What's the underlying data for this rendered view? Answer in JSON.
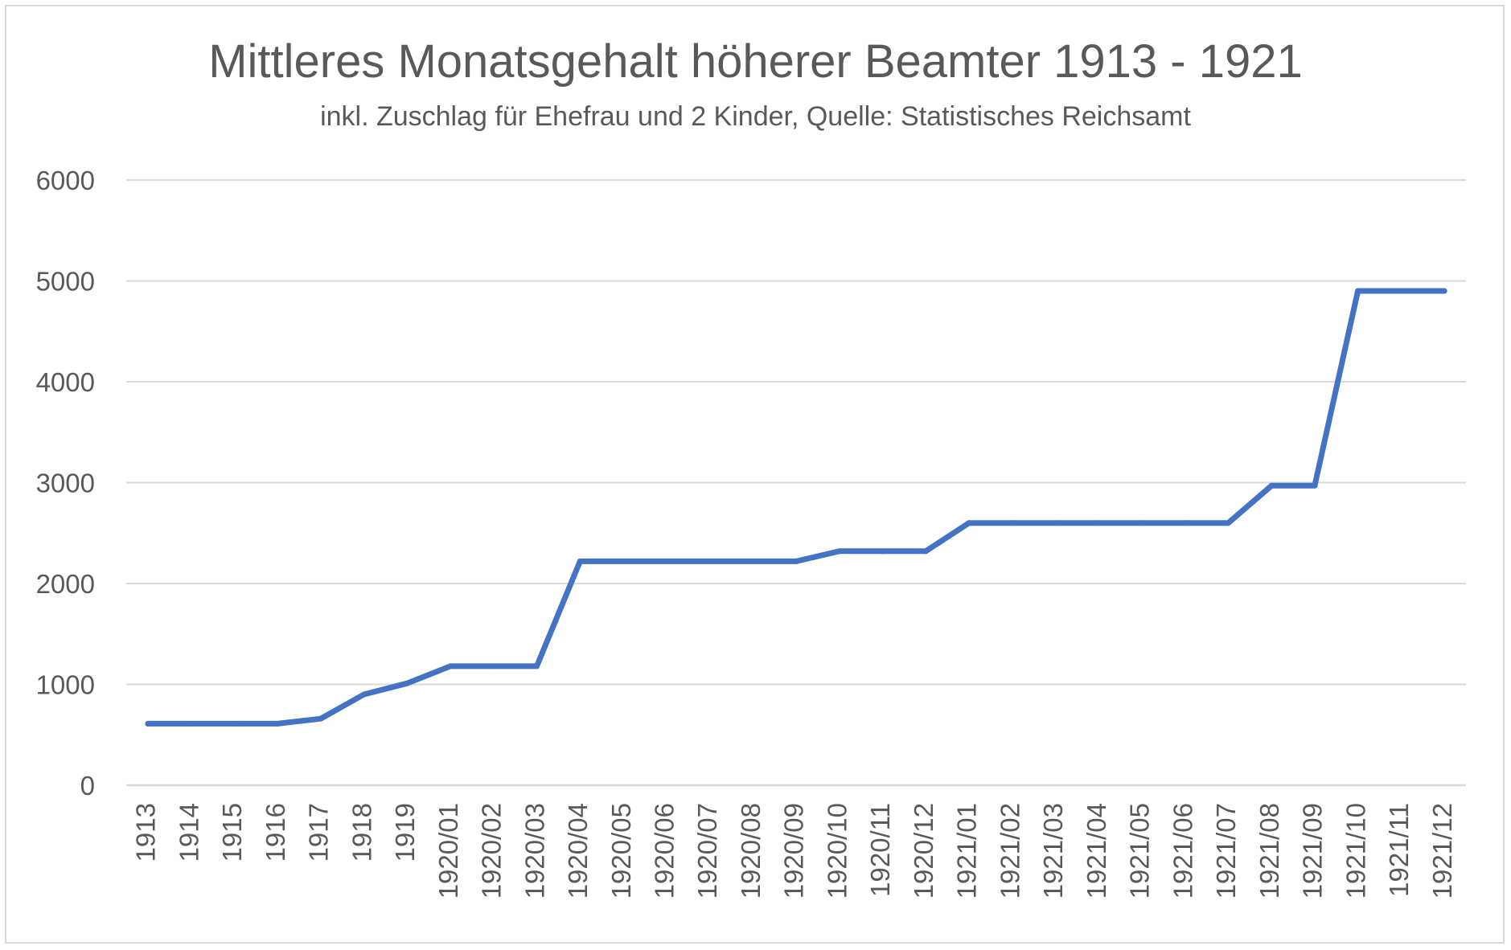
{
  "chart_data": {
    "type": "line",
    "title": "Mittleres Monatsgehalt höherer Beamter 1913 - 1921",
    "subtitle": "inkl. Zuschlag für Ehefrau und 2 Kinder, Quelle: Statistisches Reichsamt",
    "xlabel": "",
    "ylabel": "",
    "ylim": [
      0,
      6000
    ],
    "yticks": [
      "0",
      "1000",
      "2000",
      "3000",
      "4000",
      "5000",
      "6000"
    ],
    "grid": true,
    "legend": "none",
    "categories": [
      "1913",
      "1914",
      "1915",
      "1916",
      "1917",
      "1918",
      "1919",
      "1920/01",
      "1920/02",
      "1920/03",
      "1920/04",
      "1920/05",
      "1920/06",
      "1920/07",
      "1920/08",
      "1920/09",
      "1920/10",
      "1920/11",
      "1920/12",
      "1921/01",
      "1921/02",
      "1921/03",
      "1921/04",
      "1921/05",
      "1921/06",
      "1921/07",
      "1921/08",
      "1921/09",
      "1921/10",
      "1921/11",
      "1921/12"
    ],
    "series": [
      {
        "color": "#4472c4",
        "values": [
          610,
          610,
          610,
          610,
          660,
          900,
          1010,
          1180,
          1180,
          1180,
          2220,
          2220,
          2220,
          2220,
          2220,
          2220,
          2320,
          2320,
          2320,
          2600,
          2600,
          2600,
          2600,
          2600,
          2600,
          2600,
          2970,
          2970,
          4900,
          4900,
          4900
        ]
      }
    ],
    "colors": {
      "grid": "#d9d9d9",
      "text": "#595959",
      "axis": "#d9d9d9"
    }
  }
}
